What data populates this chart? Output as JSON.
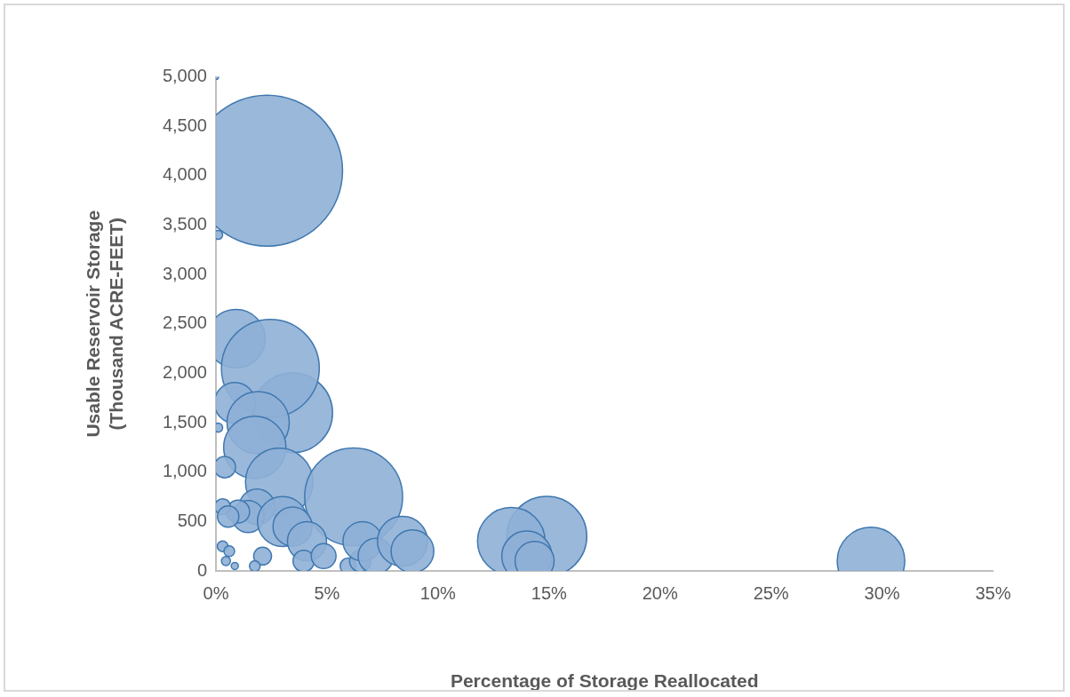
{
  "chart_data": {
    "type": "bubble",
    "xlabel": "Percentage of Storage Reallocated",
    "ylabel": "Usable Reservoir Storage\n(Thousand ACRE-FEET)",
    "xlim": [
      0,
      35
    ],
    "xticks": [
      {
        "value": 0,
        "label": "0%"
      },
      {
        "value": 5,
        "label": "5%"
      },
      {
        "value": 10,
        "label": "10%"
      },
      {
        "value": 15,
        "label": "15%"
      },
      {
        "value": 20,
        "label": "20%"
      },
      {
        "value": 25,
        "label": "25%"
      },
      {
        "value": 30,
        "label": "30%"
      },
      {
        "value": 35,
        "label": "35%"
      }
    ],
    "ylim": [
      0,
      5000
    ],
    "yticks": [
      {
        "value": 0,
        "label": "0"
      },
      {
        "value": 500,
        "label": "500"
      },
      {
        "value": 1000,
        "label": "1,000"
      },
      {
        "value": 1500,
        "label": "1,500"
      },
      {
        "value": 2000,
        "label": "2,000"
      },
      {
        "value": 2500,
        "label": "2,500"
      },
      {
        "value": 3000,
        "label": "3,000"
      },
      {
        "value": 3500,
        "label": "3,500"
      },
      {
        "value": 4000,
        "label": "4,000"
      },
      {
        "value": 4500,
        "label": "4,500"
      },
      {
        "value": 5000,
        "label": "5,000"
      }
    ],
    "grid": false,
    "legend": false,
    "series": [
      {
        "color": "#8fb0d6",
        "x": [
          2.3,
          0,
          0.1,
          0.9,
          3.45,
          2.45,
          0.85,
          1.9,
          1.75,
          0.1,
          0.4,
          2.85,
          6.2,
          1.85,
          1.45,
          1.0,
          0.3,
          0.55,
          3.0,
          3.45,
          4.1,
          3.95,
          4.85,
          2.1,
          1.75,
          0.3,
          0.6,
          0.45,
          0.85,
          5.95,
          6.5,
          6.6,
          7.2,
          8.4,
          8.85,
          14.9,
          13.3,
          14.0,
          14.35,
          29.5
        ],
        "values": [
          4050,
          5000,
          3400,
          2350,
          1600,
          2050,
          1700,
          1500,
          1250,
          1450,
          1050,
          900,
          750,
          650,
          550,
          600,
          650,
          550,
          500,
          450,
          300,
          100,
          150,
          150,
          50,
          250,
          200,
          100,
          50,
          50,
          100,
          300,
          150,
          300,
          200,
          350,
          300,
          150,
          100,
          100
        ],
        "sizes": [
          1,
          0.0012,
          0.0035,
          0.15,
          0.28,
          0.42,
          0.073,
          0.17,
          0.17,
          0.0035,
          0.02,
          0.2,
          0.42,
          0.055,
          0.045,
          0.023,
          0.011,
          0.02,
          0.11,
          0.067,
          0.067,
          0.02,
          0.027,
          0.014,
          0.005,
          0.005,
          0.005,
          0.0035,
          0.0022,
          0.011,
          0.02,
          0.067,
          0.055,
          0.11,
          0.08,
          0.28,
          0.2,
          0.11,
          0.067,
          0.2
        ]
      }
    ]
  }
}
